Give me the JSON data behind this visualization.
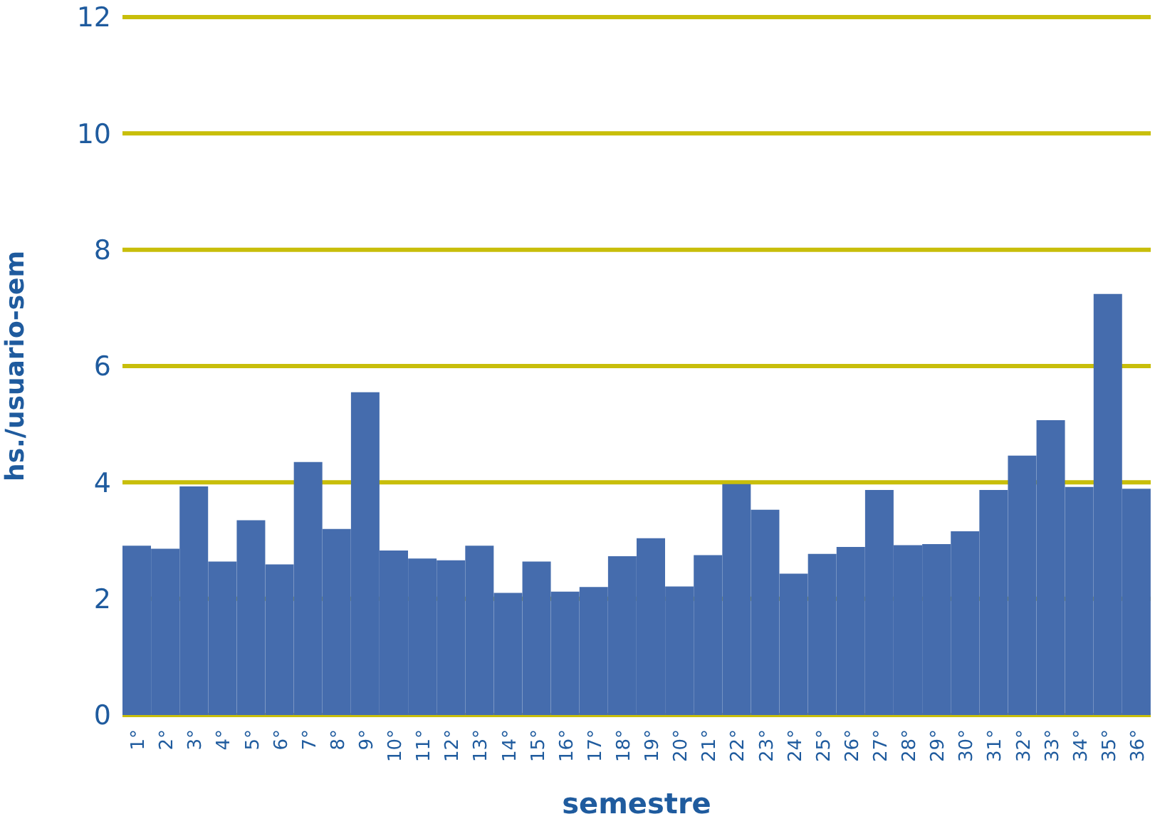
{
  "chart_data": {
    "type": "bar",
    "xlabel": "semestre",
    "ylabel": "hs./usuario-sem",
    "categories": [
      "1°",
      "2°",
      "3°",
      "4°",
      "5°",
      "6°",
      "7°",
      "8°",
      "9°",
      "10°",
      "11°",
      "12°",
      "13°",
      "14°",
      "15°",
      "16°",
      "17°",
      "18°",
      "19°",
      "20°",
      "21°",
      "22°",
      "23°",
      "24°",
      "25°",
      "26°",
      "27°",
      "28°",
      "29°",
      "30°",
      "31°",
      "32°",
      "33°",
      "34°",
      "35°",
      "36°"
    ],
    "values": [
      2.91,
      2.86,
      3.93,
      2.64,
      3.35,
      2.59,
      4.35,
      3.2,
      5.55,
      2.83,
      2.69,
      2.66,
      2.91,
      2.1,
      2.64,
      2.12,
      2.2,
      2.73,
      3.04,
      2.21,
      2.75,
      3.97,
      3.53,
      2.43,
      2.77,
      2.89,
      3.87,
      2.92,
      2.94,
      3.16,
      3.87,
      4.46,
      5.07,
      3.92,
      7.24,
      3.89
    ],
    "color": "#456cad",
    "ylim": [
      0,
      12
    ],
    "yticks": [
      0,
      2,
      4,
      6,
      8,
      10,
      12
    ],
    "grid": "y"
  }
}
